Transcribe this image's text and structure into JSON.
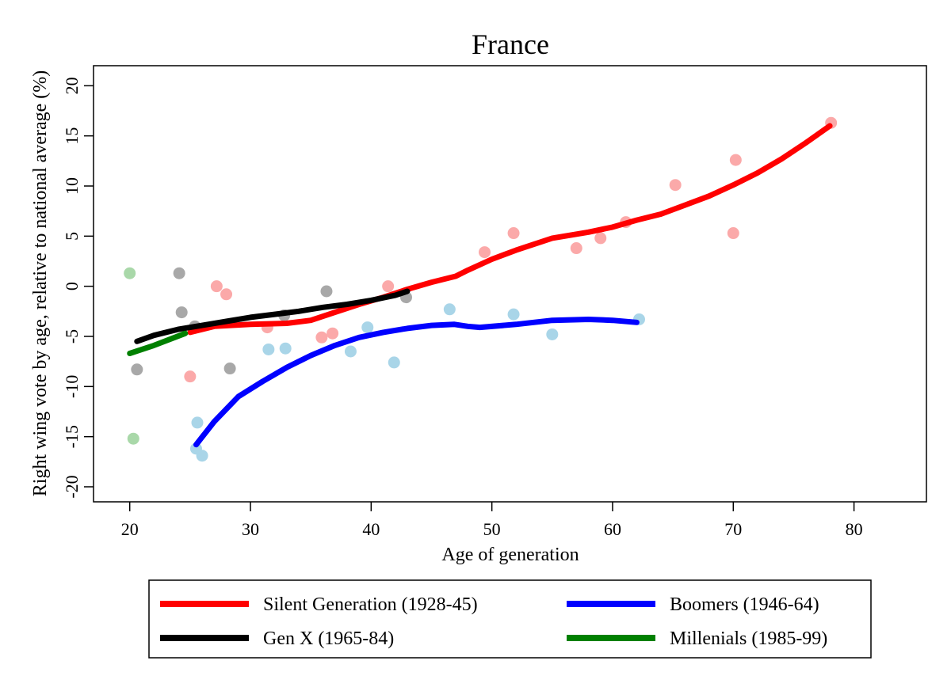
{
  "chart_data": {
    "type": "scatter",
    "title": "France",
    "xlabel": "Age of generation",
    "ylabel": "Right wing vote by age, relative to national average (%)",
    "xlim": [
      17,
      86
    ],
    "ylim": [
      -21.5,
      22
    ],
    "xticks": [
      20,
      30,
      40,
      50,
      60,
      70,
      80
    ],
    "yticks": [
      20,
      15,
      10,
      5,
      0,
      -5,
      -10,
      -15,
      -20
    ],
    "grid": false,
    "legend_position": "bottom",
    "series": [
      {
        "name": "Silent Generation (1928-45)",
        "color": "#ff0000",
        "point_color": "#fba9a9",
        "points": [
          [
            25,
            -9
          ],
          [
            27.2,
            0
          ],
          [
            28,
            -0.8
          ],
          [
            31.4,
            -4.1
          ],
          [
            35.9,
            -5.1
          ],
          [
            36.8,
            -4.7
          ],
          [
            41.4,
            0
          ],
          [
            49.4,
            3.4
          ],
          [
            51.8,
            5.3
          ],
          [
            57,
            3.8
          ],
          [
            59,
            4.8
          ],
          [
            61.1,
            6.4
          ],
          [
            65.2,
            10.1
          ],
          [
            70,
            5.3
          ],
          [
            70.2,
            12.6
          ],
          [
            78.1,
            16.3
          ]
        ],
        "trend": [
          [
            25,
            -4.6
          ],
          [
            27,
            -4.0
          ],
          [
            30,
            -3.8
          ],
          [
            33,
            -3.7
          ],
          [
            35,
            -3.4
          ],
          [
            37,
            -2.6
          ],
          [
            39,
            -1.8
          ],
          [
            41,
            -1.1
          ],
          [
            43,
            -0.3
          ],
          [
            45,
            0.4
          ],
          [
            47,
            1.0
          ],
          [
            48,
            1.6
          ],
          [
            50,
            2.7
          ],
          [
            52,
            3.6
          ],
          [
            55,
            4.8
          ],
          [
            58,
            5.4
          ],
          [
            60,
            5.9
          ],
          [
            62,
            6.6
          ],
          [
            64,
            7.2
          ],
          [
            66,
            8.1
          ],
          [
            68,
            9.0
          ],
          [
            70,
            10.1
          ],
          [
            72,
            11.3
          ],
          [
            74,
            12.7
          ],
          [
            76,
            14.3
          ],
          [
            78,
            16.0
          ]
        ]
      },
      {
        "name": "Boomers (1946-64)",
        "color": "#0000ff",
        "point_color": "#a9d5e8",
        "points": [
          [
            25.5,
            -16.2
          ],
          [
            25.6,
            -13.6
          ],
          [
            26,
            -16.9
          ],
          [
            31.5,
            -6.3
          ],
          [
            32.9,
            -6.2
          ],
          [
            38.3,
            -6.5
          ],
          [
            39.7,
            -4.1
          ],
          [
            41.9,
            -7.6
          ],
          [
            46.5,
            -2.3
          ],
          [
            51.8,
            -2.8
          ],
          [
            55,
            -4.8
          ],
          [
            62.2,
            -3.3
          ]
        ],
        "trend": [
          [
            25.5,
            -15.8
          ],
          [
            27,
            -13.5
          ],
          [
            29,
            -11.0
          ],
          [
            31,
            -9.5
          ],
          [
            33,
            -8.1
          ],
          [
            35,
            -6.9
          ],
          [
            37,
            -5.9
          ],
          [
            39,
            -5.1
          ],
          [
            41,
            -4.6
          ],
          [
            43,
            -4.2
          ],
          [
            45,
            -3.9
          ],
          [
            46.9,
            -3.8
          ],
          [
            48,
            -4.0
          ],
          [
            49,
            -4.1
          ],
          [
            52,
            -3.8
          ],
          [
            55,
            -3.4
          ],
          [
            58,
            -3.3
          ],
          [
            60,
            -3.4
          ],
          [
            62,
            -3.6
          ]
        ]
      },
      {
        "name": "Gen X (1965-84)",
        "color": "#000000",
        "point_color": "#a8a8a8",
        "points": [
          [
            20.6,
            -8.3
          ],
          [
            24.1,
            1.3
          ],
          [
            24.3,
            -2.6
          ],
          [
            25.4,
            -4
          ],
          [
            28.3,
            -8.2
          ],
          [
            32.8,
            -2.9
          ],
          [
            36.3,
            -0.5
          ],
          [
            42.9,
            -1.1
          ]
        ],
        "trend": [
          [
            20.6,
            -5.5
          ],
          [
            22,
            -4.9
          ],
          [
            24,
            -4.3
          ],
          [
            26,
            -3.9
          ],
          [
            28,
            -3.5
          ],
          [
            30,
            -3.1
          ],
          [
            32,
            -2.8
          ],
          [
            34,
            -2.5
          ],
          [
            36,
            -2.1
          ],
          [
            38,
            -1.8
          ],
          [
            40,
            -1.4
          ],
          [
            42,
            -0.9
          ],
          [
            43,
            -0.5
          ]
        ]
      },
      {
        "name": "Millenials (1985-99)",
        "color": "#008000",
        "point_color": "#a9d8a9",
        "points": [
          [
            20,
            1.3
          ],
          [
            20.3,
            -15.2
          ]
        ],
        "trend": [
          [
            20,
            -6.7
          ],
          [
            22,
            -5.9
          ],
          [
            24.6,
            -4.7
          ]
        ]
      }
    ]
  }
}
